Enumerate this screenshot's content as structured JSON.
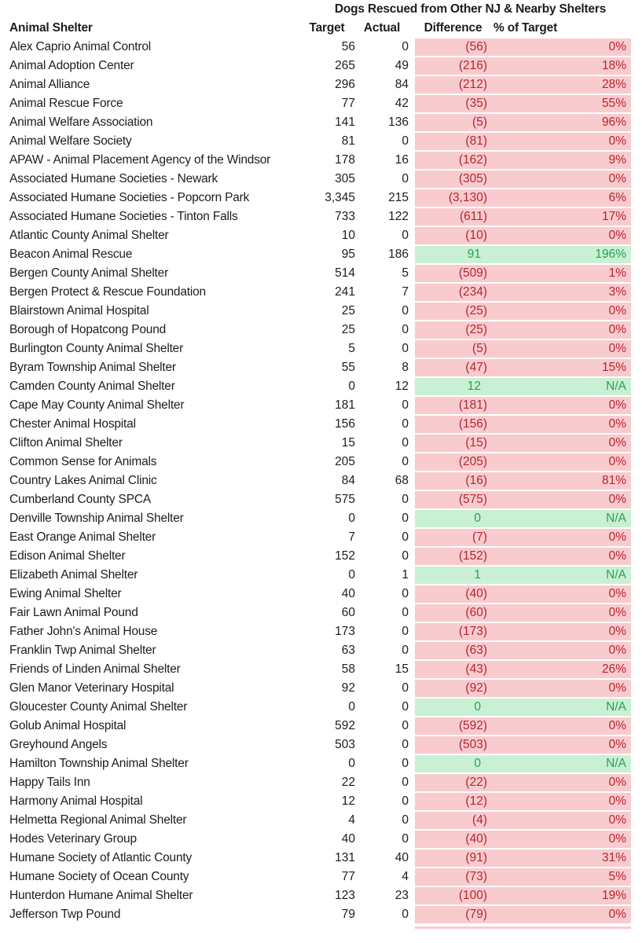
{
  "title": "Dogs Rescued from Other NJ & Nearby Shelters",
  "columns": {
    "shelter": "Animal Shelter",
    "target": "Target",
    "actual": "Actual",
    "difference": "Difference",
    "pct_of_target": "% of Target"
  },
  "colors": {
    "negative_fill": "#f8cbce",
    "negative_text": "#b7242f",
    "positive_fill": "#c9f0d4",
    "positive_text": "#28a254"
  },
  "chart_data": {
    "type": "table",
    "title": "Dogs Rescued from Other NJ & Nearby Shelters",
    "columns": [
      "Animal Shelter",
      "Target",
      "Actual",
      "Difference",
      "% of Target"
    ],
    "status_legend": {
      "under": "pink fill, dark red text",
      "over": "green fill, green text"
    },
    "rows": [
      [
        "Alex Caprio Animal Control",
        "56",
        "0",
        "(56)",
        "0%",
        "under"
      ],
      [
        "Animal Adoption Center",
        "265",
        "49",
        "(216)",
        "18%",
        "under"
      ],
      [
        "Animal Alliance",
        "296",
        "84",
        "(212)",
        "28%",
        "under"
      ],
      [
        "Animal Rescue Force",
        "77",
        "42",
        "(35)",
        "55%",
        "under"
      ],
      [
        "Animal Welfare Association",
        "141",
        "136",
        "(5)",
        "96%",
        "under"
      ],
      [
        "Animal Welfare Society",
        "81",
        "0",
        "(81)",
        "0%",
        "under"
      ],
      [
        "APAW - Animal Placement Agency of the Windsor",
        "178",
        "16",
        "(162)",
        "9%",
        "under"
      ],
      [
        "Associated Humane Societies - Newark",
        "305",
        "0",
        "(305)",
        "0%",
        "under"
      ],
      [
        "Associated Humane Societies - Popcorn Park",
        "3,345",
        "215",
        "(3,130)",
        "6%",
        "under"
      ],
      [
        "Associated Humane Societies - Tinton Falls",
        "733",
        "122",
        "(611)",
        "17%",
        "under"
      ],
      [
        "Atlantic County Animal Shelter",
        "10",
        "0",
        "(10)",
        "0%",
        "under"
      ],
      [
        "Beacon Animal Rescue",
        "95",
        "186",
        "91",
        "196%",
        "over"
      ],
      [
        "Bergen County Animal Shelter",
        "514",
        "5",
        "(509)",
        "1%",
        "under"
      ],
      [
        "Bergen Protect & Rescue Foundation",
        "241",
        "7",
        "(234)",
        "3%",
        "under"
      ],
      [
        "Blairstown Animal Hospital",
        "25",
        "0",
        "(25)",
        "0%",
        "under"
      ],
      [
        "Borough of Hopatcong Pound",
        "25",
        "0",
        "(25)",
        "0%",
        "under"
      ],
      [
        "Burlington County Animal Shelter",
        "5",
        "0",
        "(5)",
        "0%",
        "under"
      ],
      [
        "Byram Township Animal Shelter",
        "55",
        "8",
        "(47)",
        "15%",
        "under"
      ],
      [
        "Camden County Animal Shelter",
        "0",
        "12",
        "12",
        "N/A",
        "over"
      ],
      [
        "Cape May County Animal Shelter",
        "181",
        "0",
        "(181)",
        "0%",
        "under"
      ],
      [
        "Chester Animal Hospital",
        "156",
        "0",
        "(156)",
        "0%",
        "under"
      ],
      [
        "Clifton Animal Shelter",
        "15",
        "0",
        "(15)",
        "0%",
        "under"
      ],
      [
        "Common Sense for Animals",
        "205",
        "0",
        "(205)",
        "0%",
        "under"
      ],
      [
        "Country Lakes Animal Clinic",
        "84",
        "68",
        "(16)",
        "81%",
        "under"
      ],
      [
        "Cumberland County SPCA",
        "575",
        "0",
        "(575)",
        "0%",
        "under"
      ],
      [
        "Denville Township Animal Shelter",
        "0",
        "0",
        "0",
        "N/A",
        "over"
      ],
      [
        "East Orange Animal Shelter",
        "7",
        "0",
        "(7)",
        "0%",
        "under"
      ],
      [
        "Edison Animal Shelter",
        "152",
        "0",
        "(152)",
        "0%",
        "under"
      ],
      [
        "Elizabeth Animal Shelter",
        "0",
        "1",
        "1",
        "N/A",
        "over"
      ],
      [
        "Ewing Animal Shelter",
        "40",
        "0",
        "(40)",
        "0%",
        "under"
      ],
      [
        "Fair Lawn Animal Pound",
        "60",
        "0",
        "(60)",
        "0%",
        "under"
      ],
      [
        "Father John's Animal House",
        "173",
        "0",
        "(173)",
        "0%",
        "under"
      ],
      [
        "Franklin Twp Animal Shelter",
        "63",
        "0",
        "(63)",
        "0%",
        "under"
      ],
      [
        "Friends of Linden Animal Shelter",
        "58",
        "15",
        "(43)",
        "26%",
        "under"
      ],
      [
        "Glen Manor Veterinary Hospital",
        "92",
        "0",
        "(92)",
        "0%",
        "under"
      ],
      [
        "Gloucester County Animal Shelter",
        "0",
        "0",
        "0",
        "N/A",
        "over"
      ],
      [
        "Golub Animal Hospital",
        "592",
        "0",
        "(592)",
        "0%",
        "under"
      ],
      [
        "Greyhound Angels",
        "503",
        "0",
        "(503)",
        "0%",
        "under"
      ],
      [
        "Hamilton Township Animal Shelter",
        "0",
        "0",
        "0",
        "N/A",
        "over"
      ],
      [
        "Happy Tails Inn",
        "22",
        "0",
        "(22)",
        "0%",
        "under"
      ],
      [
        "Harmony Animal Hospital",
        "12",
        "0",
        "(12)",
        "0%",
        "under"
      ],
      [
        "Helmetta Regional Animal Shelter",
        "4",
        "0",
        "(4)",
        "0%",
        "under"
      ],
      [
        "Hodes Veterinary Group",
        "40",
        "0",
        "(40)",
        "0%",
        "under"
      ],
      [
        "Humane Society of Atlantic County",
        "131",
        "40",
        "(91)",
        "31%",
        "under"
      ],
      [
        "Humane Society of Ocean County",
        "77",
        "4",
        "(73)",
        "5%",
        "under"
      ],
      [
        "Hunterdon Humane Animal Shelter",
        "123",
        "23",
        "(100)",
        "19%",
        "under"
      ],
      [
        "Jefferson Twp Pound",
        "79",
        "0",
        "(79)",
        "0%",
        "under"
      ]
    ]
  }
}
